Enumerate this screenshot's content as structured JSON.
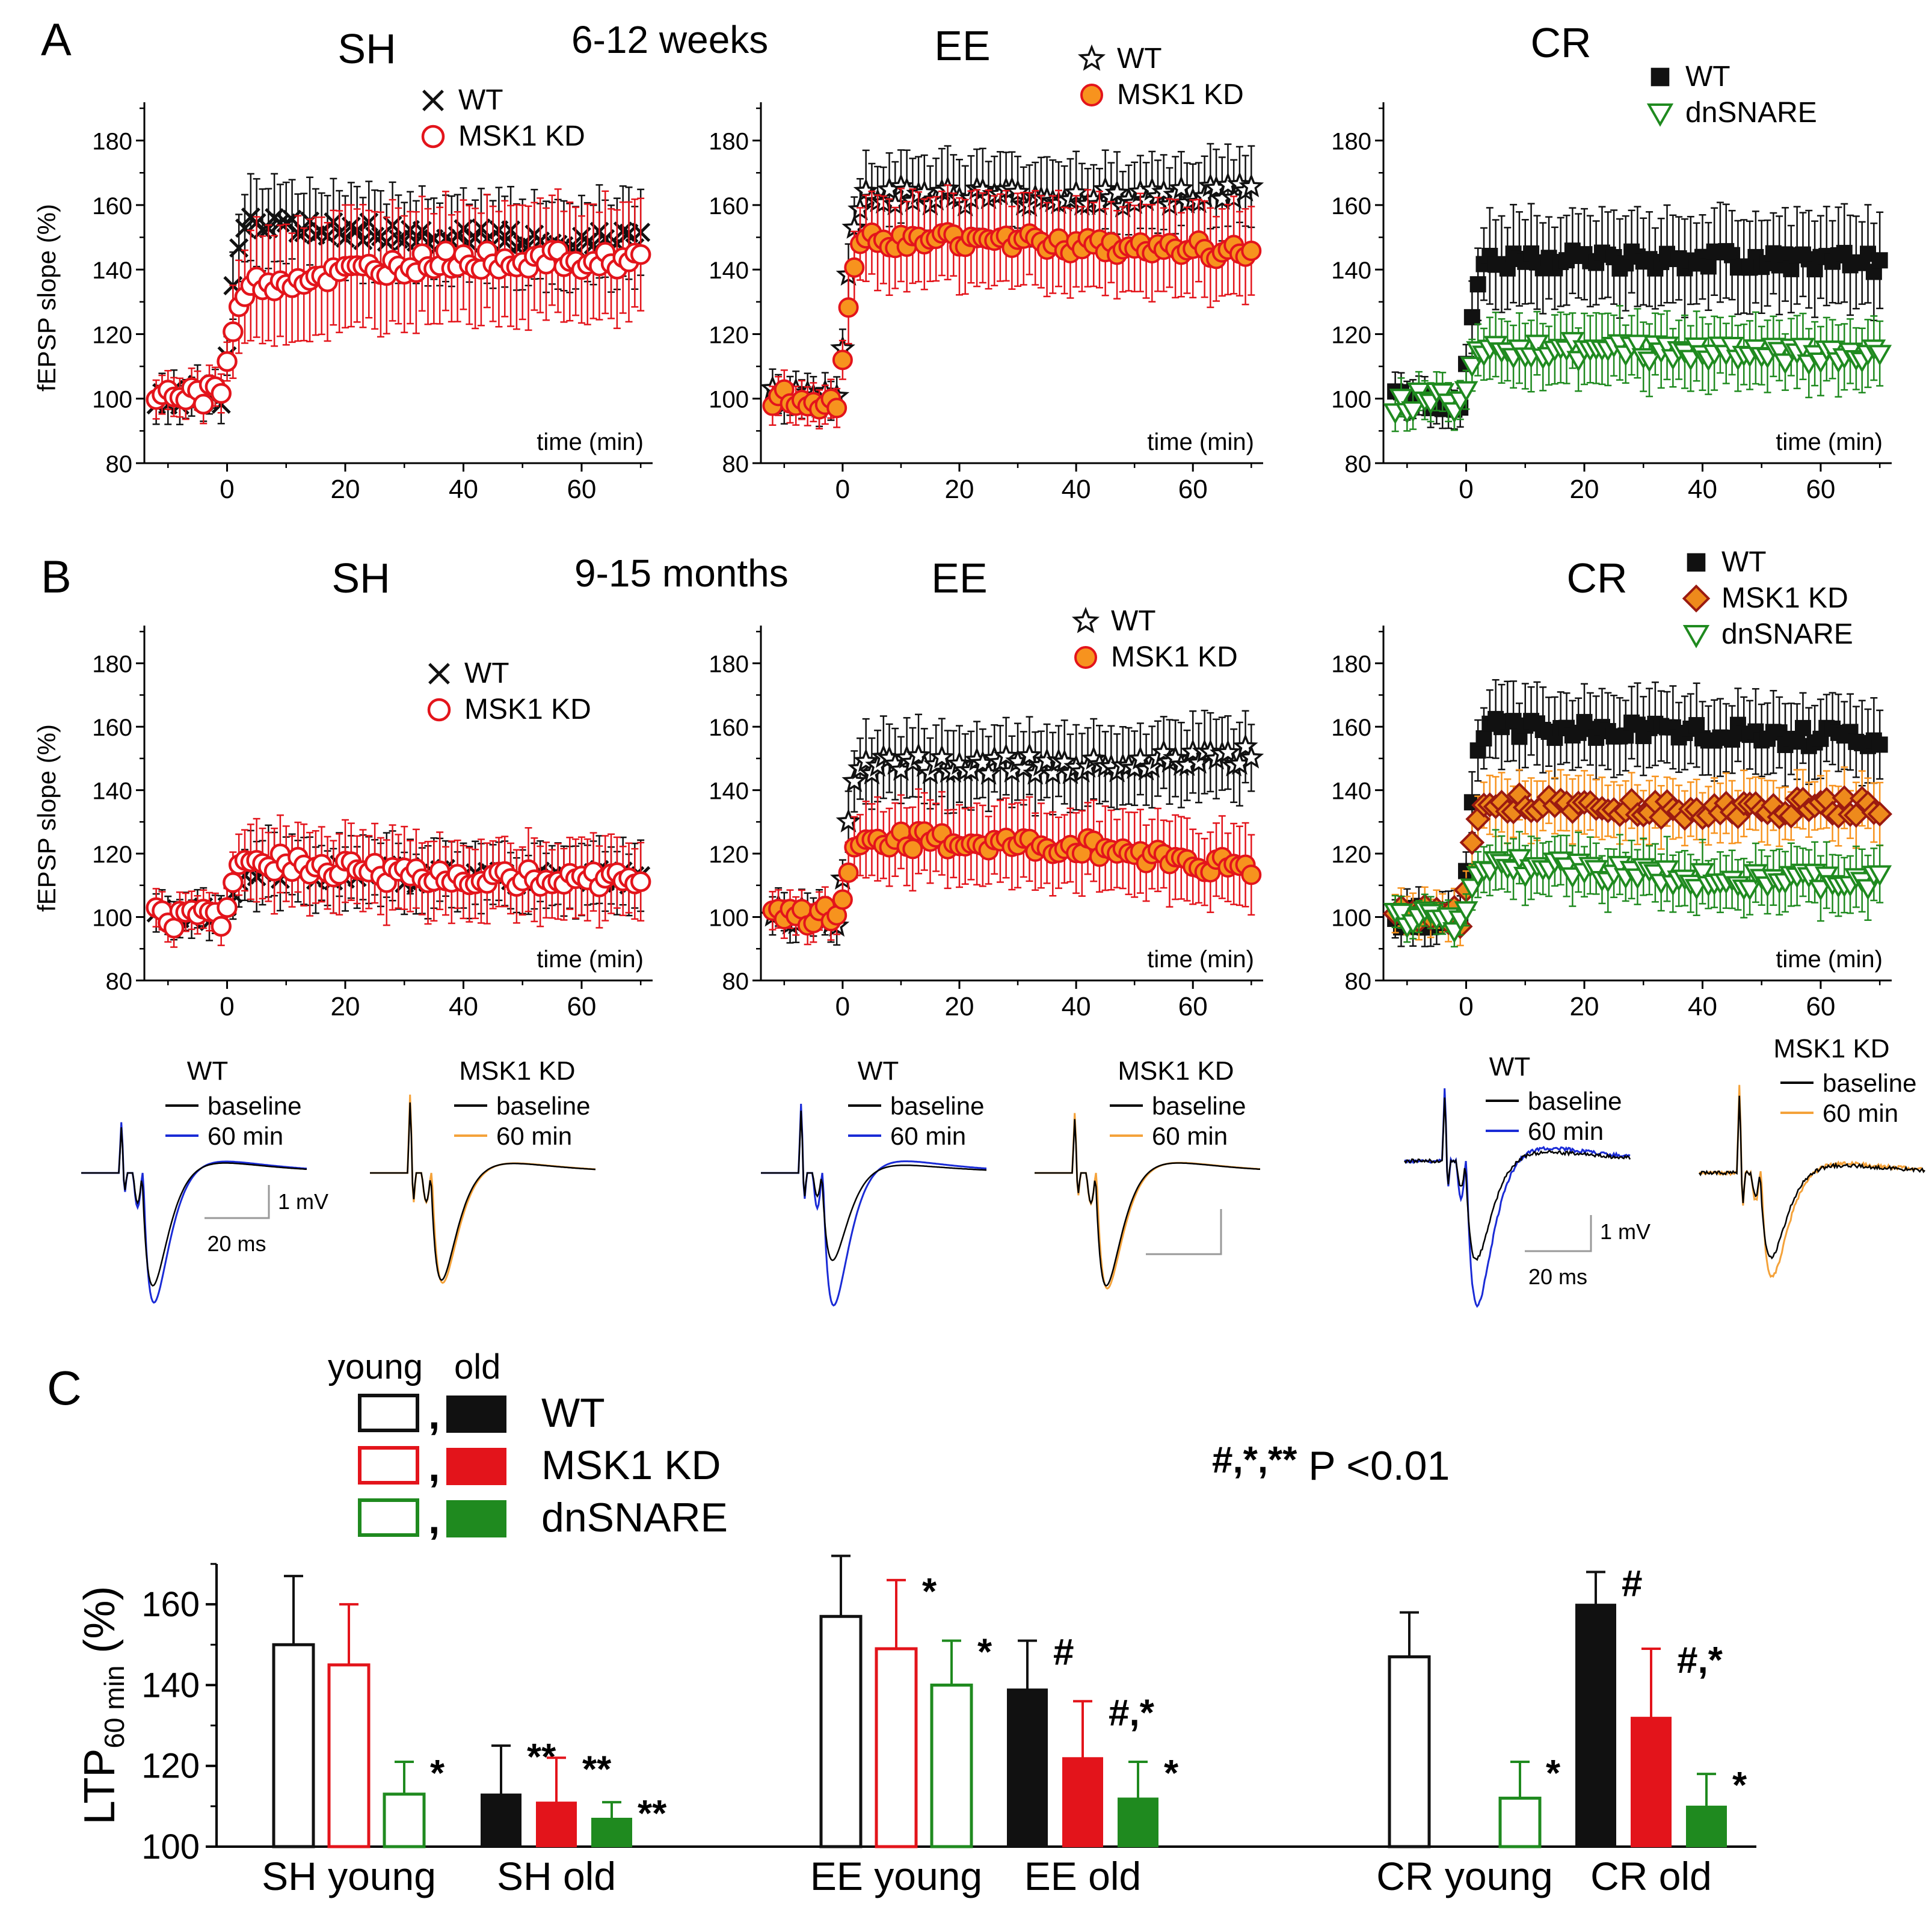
{
  "colors": {
    "black": "#111111",
    "red": "#e3141b",
    "orange_fill": "#f7931e",
    "green": "#1f8a1f",
    "blue": "#1a2bd6",
    "trace_orange": "#f4a23a",
    "diamond_fill": "#ee8a1c",
    "diamond_edge": "#9a1a10",
    "grey": "#999999"
  },
  "panel_letters": {
    "A": "A",
    "B": "B",
    "C": "C"
  },
  "group_titles": {
    "young": "6-12 weeks",
    "old": "9-15 months"
  },
  "common": {
    "ylabel": "fEPSP slope (%)",
    "xlabel": "time (min)"
  },
  "traces_text": {
    "wt": "WT",
    "msk1": "MSK1 KD",
    "baseline": "baseline",
    "min60": "60 min",
    "scale_mv": "1 mV",
    "scale_ms": "20 ms"
  },
  "chart_data": [
    {
      "id": "A_SH",
      "type": "scatter",
      "title": "SH",
      "xlabel": "time (min)",
      "ylabel": "fEPSP slope (%)",
      "xlim": [
        -14,
        71
      ],
      "ylim": [
        80,
        190
      ],
      "xticks": [
        0,
        20,
        40,
        60
      ],
      "yticks": [
        80,
        100,
        120,
        140,
        160,
        180
      ],
      "series": [
        {
          "name": "WT",
          "marker": "x",
          "color": "#111111",
          "baseline": 101,
          "plateau": 150,
          "peak": 155,
          "end": 149,
          "err_base": 6,
          "err_late": 13
        },
        {
          "name": "MSK1 KD",
          "marker": "circle",
          "color": "#e3141b",
          "baseline": 101,
          "plateau": 143,
          "peak": 135,
          "end": 143,
          "err_base": 6,
          "err_late": 18
        }
      ]
    },
    {
      "id": "A_EE",
      "type": "scatter",
      "title": "EE",
      "xlabel": "time (min)",
      "ylabel": "",
      "xlim": [
        -14,
        71
      ],
      "ylim": [
        80,
        190
      ],
      "xticks": [
        0,
        20,
        40,
        60
      ],
      "yticks": [
        80,
        100,
        120,
        140,
        160,
        180
      ],
      "series": [
        {
          "name": "WT",
          "marker": "star",
          "color": "#111111",
          "baseline": 100,
          "plateau": 162,
          "peak": 163,
          "end": 164,
          "err_base": 6,
          "err_late": 12
        },
        {
          "name": "MSK1 KD",
          "marker": "filled-circle",
          "color": "#e3141b",
          "baseline": 100,
          "plateau": 148,
          "peak": 150,
          "end": 145,
          "err_base": 6,
          "err_late": 14
        }
      ]
    },
    {
      "id": "A_CR",
      "type": "scatter",
      "title": "CR",
      "xlabel": "time (min)",
      "ylabel": "",
      "xlim": [
        -14,
        71
      ],
      "ylim": [
        80,
        190
      ],
      "xticks": [
        0,
        20,
        40,
        60
      ],
      "yticks": [
        80,
        100,
        120,
        140,
        160,
        180
      ],
      "series": [
        {
          "name": "WT",
          "marker": "square",
          "color": "#111111",
          "baseline": 100,
          "plateau": 143,
          "peak": 143,
          "end": 142,
          "err_base": 6,
          "err_late": 14
        },
        {
          "name": "dnSNARE",
          "marker": "triangle-down",
          "color": "#1f8a1f",
          "baseline": 99,
          "plateau": 114,
          "peak": 116,
          "end": 114,
          "err_base": 6,
          "err_late": 10
        }
      ]
    },
    {
      "id": "B_SH",
      "type": "scatter",
      "title": "SH",
      "xlabel": "time (min)",
      "ylabel": "fEPSP slope (%)",
      "xlim": [
        -14,
        71
      ],
      "ylim": [
        80,
        190
      ],
      "xticks": [
        0,
        20,
        40,
        60
      ],
      "yticks": [
        80,
        100,
        120,
        140,
        160,
        180
      ],
      "series": [
        {
          "name": "WT",
          "marker": "x",
          "color": "#111111",
          "baseline": 100,
          "plateau": 113,
          "peak": 115,
          "end": 113,
          "err_base": 6,
          "err_late": 10
        },
        {
          "name": "MSK1 KD",
          "marker": "circle",
          "color": "#e3141b",
          "baseline": 100,
          "plateau": 112,
          "peak": 118,
          "end": 112,
          "err_base": 6,
          "err_late": 12
        }
      ]
    },
    {
      "id": "B_EE",
      "type": "scatter",
      "title": "EE",
      "xlabel": "time (min)",
      "ylabel": "",
      "xlim": [
        -14,
        71
      ],
      "ylim": [
        80,
        190
      ],
      "xticks": [
        0,
        20,
        40,
        60
      ],
      "yticks": [
        80,
        100,
        120,
        140,
        160,
        180
      ],
      "series": [
        {
          "name": "WT",
          "marker": "star",
          "color": "#111111",
          "baseline": 100,
          "plateau": 148,
          "peak": 148,
          "end": 151,
          "err_base": 6,
          "err_late": 12
        },
        {
          "name": "MSK1 KD",
          "marker": "filled-circle",
          "color": "#e3141b",
          "baseline": 100,
          "plateau": 122,
          "peak": 125,
          "end": 115,
          "err_base": 6,
          "err_late": 12
        }
      ]
    },
    {
      "id": "B_CR",
      "type": "scatter",
      "title": "CR",
      "xlabel": "time (min)",
      "ylabel": "",
      "xlim": [
        -14,
        71
      ],
      "ylim": [
        80,
        190
      ],
      "xticks": [
        0,
        20,
        40,
        60
      ],
      "yticks": [
        80,
        100,
        120,
        140,
        160,
        180
      ],
      "series": [
        {
          "name": "WT",
          "marker": "square",
          "color": "#111111",
          "baseline": 100,
          "plateau": 158,
          "peak": 160,
          "end": 156,
          "err_base": 6,
          "err_late": 12
        },
        {
          "name": "MSK1 KD",
          "marker": "diamond",
          "color": "#9a1a10",
          "baseline": 100,
          "plateau": 134,
          "peak": 136,
          "end": 135,
          "err_base": 6,
          "err_late": 9
        },
        {
          "name": "dnSNARE",
          "marker": "triangle-down",
          "color": "#1f8a1f",
          "baseline": 99,
          "plateau": 112,
          "peak": 117,
          "end": 111,
          "err_base": 5,
          "err_late": 9
        }
      ]
    },
    {
      "id": "C_LTP",
      "type": "bar",
      "ylabel": "LTP60 min (%)",
      "ylim": [
        100,
        170
      ],
      "yticks": [
        100,
        120,
        140,
        160
      ],
      "p_note": "#,*,** P <0.01",
      "legend": {
        "header_young": "young",
        "header_old": "old",
        "entries": [
          "WT",
          "MSK1 KD",
          "dnSNARE"
        ]
      },
      "groups": [
        {
          "label": "SH young",
          "bars": [
            {
              "genotype": "WT",
              "age": "young",
              "value": 150,
              "err": 17,
              "mark": ""
            },
            {
              "genotype": "MSK1 KD",
              "age": "young",
              "value": 145,
              "err": 15,
              "mark": ""
            },
            {
              "genotype": "dnSNARE",
              "age": "young",
              "value": 113,
              "err": 8,
              "mark": "*"
            }
          ]
        },
        {
          "label": "SH old",
          "bars": [
            {
              "genotype": "WT",
              "age": "old",
              "value": 113,
              "err": 12,
              "mark": "**"
            },
            {
              "genotype": "MSK1 KD",
              "age": "old",
              "value": 111,
              "err": 11,
              "mark": "**"
            },
            {
              "genotype": "dnSNARE",
              "age": "old",
              "value": 107,
              "err": 4,
              "mark": "**"
            }
          ]
        },
        {
          "label": "EE young",
          "bars": [
            {
              "genotype": "WT",
              "age": "young",
              "value": 157,
              "err": 15,
              "mark": ""
            },
            {
              "genotype": "MSK1 KD",
              "age": "young",
              "value": 149,
              "err": 17,
              "mark": "*"
            },
            {
              "genotype": "dnSNARE",
              "age": "young",
              "value": 140,
              "err": 11,
              "mark": "*"
            }
          ]
        },
        {
          "label": "EE old",
          "bars": [
            {
              "genotype": "WT",
              "age": "old",
              "value": 139,
              "err": 12,
              "mark": "#"
            },
            {
              "genotype": "MSK1 KD",
              "age": "old",
              "value": 122,
              "err": 14,
              "mark": "#,*"
            },
            {
              "genotype": "dnSNARE",
              "age": "old",
              "value": 112,
              "err": 9,
              "mark": "*"
            }
          ]
        },
        {
          "label": "CR young",
          "bars": [
            {
              "genotype": "WT",
              "age": "young",
              "value": 147,
              "err": 11,
              "mark": ""
            },
            {
              "genotype": "MSK1 KD",
              "age": "young",
              "value": null,
              "err": 0,
              "mark": ""
            },
            {
              "genotype": "dnSNARE",
              "age": "young",
              "value": 112,
              "err": 9,
              "mark": "*"
            }
          ]
        },
        {
          "label": "CR old",
          "bars": [
            {
              "genotype": "WT",
              "age": "old",
              "value": 160,
              "err": 8,
              "mark": "#"
            },
            {
              "genotype": "MSK1 KD",
              "age": "old",
              "value": 132,
              "err": 17,
              "mark": "#,*"
            },
            {
              "genotype": "dnSNARE",
              "age": "old",
              "value": 110,
              "err": 8,
              "mark": "*"
            }
          ]
        }
      ]
    }
  ]
}
